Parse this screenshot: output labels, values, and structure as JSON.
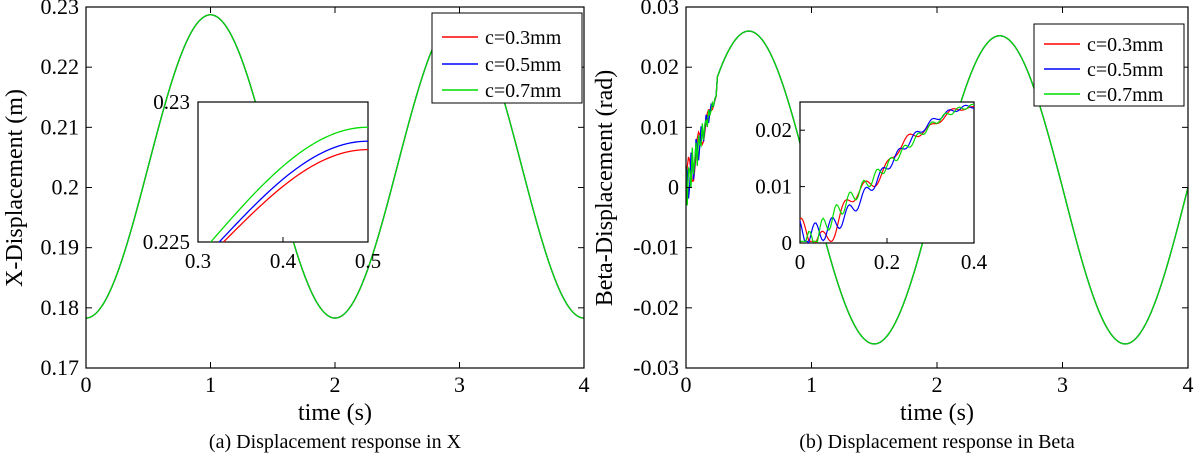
{
  "panels": [
    {
      "caption": "(a) Displacement response in X",
      "chart_data": {
        "type": "line",
        "xlabel": "time (s)",
        "ylabel": "X-Displacement (m)",
        "xlim": [
          0,
          4
        ],
        "ylim": [
          0.17,
          0.23
        ],
        "xticks": [
          "0",
          "1",
          "2",
          "3",
          "4"
        ],
        "yticks": [
          "0.17",
          "0.18",
          "0.19",
          "0.2",
          "0.21",
          "0.22",
          "0.23"
        ],
        "legend_position": "top-right",
        "grid": false,
        "series": [
          {
            "name": "c=0.3mm",
            "color": "#ff0000",
            "model": {
              "offset": 0.2035,
              "amp": 0.0252,
              "period": 2.0,
              "lag": 0.0
            }
          },
          {
            "name": "c=0.5mm",
            "color": "#0000ff",
            "model": {
              "offset": 0.2035,
              "amp": 0.0252,
              "period": 2.0,
              "lag": 0.0
            }
          },
          {
            "name": "c=0.7mm",
            "color": "#00dd00",
            "model": {
              "offset": 0.2035,
              "amp": 0.0252,
              "period": 2.0,
              "lag": 0.0
            }
          }
        ],
        "inset": {
          "xlim": [
            0.3,
            0.5
          ],
          "ylim": [
            0.225,
            0.23
          ],
          "xticks": [
            "0.3",
            "0.4",
            "0.5"
          ],
          "yticks": [
            "0.225",
            "0.23"
          ],
          "series_endpoints": [
            {
              "name": "c=0.3mm",
              "start": [
                0.33,
                0.225
              ],
              "end": [
                0.5,
                0.2283
              ]
            },
            {
              "name": "c=0.5mm",
              "start": [
                0.325,
                0.225
              ],
              "end": [
                0.5,
                0.2286
              ]
            },
            {
              "name": "c=0.7mm",
              "start": [
                0.315,
                0.225
              ],
              "end": [
                0.5,
                0.2291
              ]
            }
          ]
        }
      }
    },
    {
      "caption": "(b) Displacement response in Beta",
      "chart_data": {
        "type": "line",
        "xlabel": "time (s)",
        "ylabel": "Beta-Displacement (rad)",
        "xlim": [
          0,
          4
        ],
        "ylim": [
          -0.03,
          0.03
        ],
        "xticks": [
          "0",
          "1",
          "2",
          "3",
          "4"
        ],
        "yticks": [
          "-0.03",
          "-0.02",
          "-0.01",
          "0",
          "0.01",
          "0.02",
          "0.03"
        ],
        "legend_position": "top-right",
        "grid": false,
        "series": [
          {
            "name": "c=0.3mm",
            "color": "#ff0000",
            "model": {
              "offset": 0.0,
              "amp": 0.026,
              "period": 2.0,
              "lag": 0.0
            }
          },
          {
            "name": "c=0.5mm",
            "color": "#0000ff",
            "model": {
              "offset": 0.0,
              "amp": 0.026,
              "period": 2.0,
              "lag": 0.0
            }
          },
          {
            "name": "c=0.7mm",
            "color": "#00dd00",
            "model": {
              "offset": 0.0,
              "amp": 0.026,
              "period": 2.0,
              "lag": 0.0
            }
          }
        ],
        "inset": {
          "xlim": [
            0,
            0.4
          ],
          "ylim": [
            0,
            0.025
          ],
          "xticks": [
            "0",
            "0.2",
            "0.4"
          ],
          "yticks": [
            "0",
            "0.01",
            "0.02"
          ]
        }
      }
    }
  ]
}
